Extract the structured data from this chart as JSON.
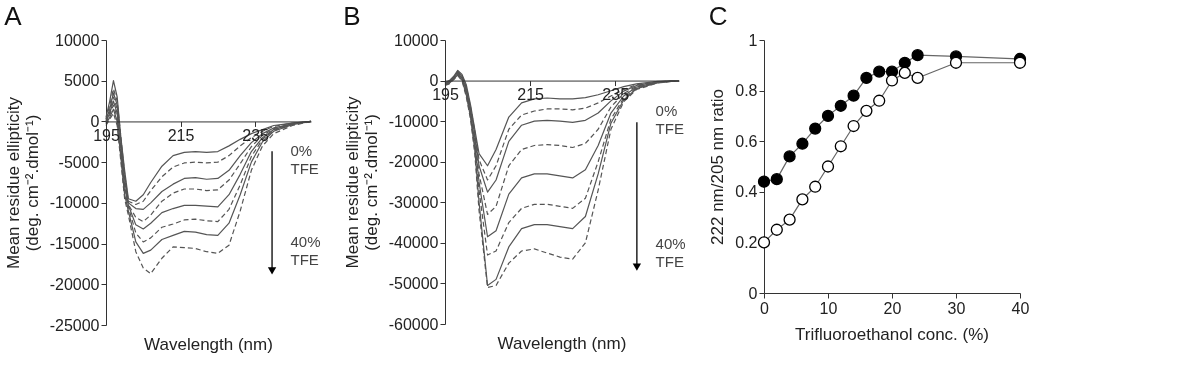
{
  "chart_data": [
    {
      "type": "line",
      "title": "A",
      "xlabel": "Wavelength (nm)",
      "ylabel": "Mean residue ellipticity\n(deg. cm⁻².dmol⁻¹)",
      "x": [
        195,
        196,
        197,
        198,
        199,
        200,
        201,
        203,
        205,
        207,
        210,
        213,
        216,
        219,
        222,
        225,
        228,
        231,
        234,
        237,
        240,
        245,
        250
      ],
      "xlim": [
        195,
        250
      ],
      "xticks": [
        195,
        215,
        235
      ],
      "ylim": [
        -25000,
        10000
      ],
      "yticks": [
        -25000,
        -20000,
        -15000,
        -10000,
        -5000,
        0,
        5000,
        10000
      ],
      "annotations": [
        "0% TFE",
        "40% TFE"
      ],
      "series": [
        {
          "color": "#555555",
          "line_style": "solid",
          "values": [
            500,
            2500,
            5000,
            3000,
            -2000,
            -6000,
            -9500,
            -9800,
            -9000,
            -7500,
            -5500,
            -4200,
            -3800,
            -3700,
            -3800,
            -3700,
            -3000,
            -2200,
            -1500,
            -1000,
            -500,
            -200,
            0
          ]
        },
        {
          "color": "#555555",
          "line_style": "dashed",
          "values": [
            300,
            2000,
            4000,
            2500,
            -2000,
            -6500,
            -9800,
            -10200,
            -9800,
            -8500,
            -6800,
            -5600,
            -5100,
            -5000,
            -5100,
            -5000,
            -4200,
            -3000,
            -2000,
            -1200,
            -600,
            -200,
            0
          ]
        },
        {
          "color": "#555555",
          "line_style": "solid",
          "values": [
            200,
            1500,
            3500,
            2000,
            -2500,
            -7000,
            -10000,
            -10700,
            -10800,
            -10000,
            -8600,
            -7700,
            -7000,
            -6900,
            -7100,
            -7000,
            -6000,
            -4200,
            -2600,
            -1500,
            -800,
            -300,
            0
          ]
        },
        {
          "color": "#555555",
          "line_style": "dashed",
          "values": [
            0,
            1200,
            3000,
            1500,
            -3000,
            -7500,
            -10200,
            -11800,
            -12300,
            -11500,
            -9800,
            -8800,
            -8300,
            -8300,
            -8500,
            -8400,
            -7200,
            -5200,
            -3100,
            -1700,
            -900,
            -300,
            0
          ]
        },
        {
          "color": "#555555",
          "line_style": "solid",
          "values": [
            0,
            1000,
            2500,
            1000,
            -3500,
            -8000,
            -10300,
            -12700,
            -13200,
            -12500,
            -11200,
            -10700,
            -10300,
            -10300,
            -10400,
            -10500,
            -9000,
            -6500,
            -3700,
            -2000,
            -1000,
            -300,
            0
          ]
        },
        {
          "color": "#555555",
          "line_style": "dashed",
          "values": [
            -200,
            800,
            2000,
            500,
            -4000,
            -8500,
            -10500,
            -13700,
            -14800,
            -14300,
            -13000,
            -12600,
            -12100,
            -12000,
            -12200,
            -12300,
            -10800,
            -7800,
            -4300,
            -2200,
            -1100,
            -400,
            0
          ]
        },
        {
          "color": "#555555",
          "line_style": "solid",
          "values": [
            -300,
            500,
            1500,
            0,
            -4500,
            -9000,
            -11000,
            -14800,
            -16200,
            -15800,
            -14500,
            -14000,
            -13500,
            -13600,
            -13900,
            -14000,
            -12500,
            -9000,
            -5000,
            -2500,
            -1200,
            -400,
            0
          ]
        },
        {
          "color": "#555555",
          "line_style": "dashed",
          "values": [
            -500,
            300,
            1000,
            -500,
            -5000,
            -9500,
            -11500,
            -16000,
            -18000,
            -18700,
            -16800,
            -15400,
            -15500,
            -15600,
            -16000,
            -16200,
            -15200,
            -11000,
            -6000,
            -3000,
            -1500,
            -500,
            0
          ]
        }
      ]
    },
    {
      "type": "line",
      "title": "B",
      "xlabel": "Wavelength (nm)",
      "ylabel": "Mean residue ellipticity\n(deg. cm⁻².dmol⁻¹)",
      "x": [
        195,
        196,
        197,
        198,
        199,
        200,
        201,
        202,
        203,
        205,
        207,
        210,
        213,
        216,
        219,
        222,
        225,
        228,
        231,
        234,
        237,
        240,
        245,
        250
      ],
      "xlim": [
        195,
        250
      ],
      "xticks": [
        195,
        215,
        235
      ],
      "ylim": [
        -60000,
        10000
      ],
      "yticks": [
        -60000,
        -50000,
        -40000,
        -30000,
        -20000,
        -10000,
        0,
        10000
      ],
      "annotations": [
        "0% TFE",
        "40% TFE"
      ],
      "series": [
        {
          "color": "#555555",
          "line_style": "solid",
          "values": [
            -500,
            0,
            1000,
            2500,
            1500,
            -1000,
            -6000,
            -12000,
            -18000,
            -21000,
            -17000,
            -9000,
            -5500,
            -4500,
            -4300,
            -4500,
            -4500,
            -4200,
            -3500,
            -2500,
            -1500,
            -800,
            -200,
            0
          ]
        },
        {
          "color": "#555555",
          "line_style": "dashed",
          "values": [
            -600,
            -200,
            800,
            2300,
            1200,
            -1500,
            -6500,
            -12500,
            -19500,
            -24500,
            -21000,
            -12000,
            -8500,
            -7500,
            -7000,
            -7000,
            -7200,
            -6800,
            -5500,
            -3800,
            -2200,
            -1000,
            -300,
            0
          ]
        },
        {
          "color": "#555555",
          "line_style": "solid",
          "values": [
            -700,
            -300,
            700,
            2200,
            1000,
            -1800,
            -7000,
            -13000,
            -21000,
            -27500,
            -24500,
            -15000,
            -11000,
            -10000,
            -9800,
            -10000,
            -10300,
            -9800,
            -8000,
            -5000,
            -2600,
            -1200,
            -300,
            0
          ]
        },
        {
          "color": "#555555",
          "line_style": "dashed",
          "values": [
            -800,
            -400,
            600,
            2000,
            800,
            -2000,
            -7500,
            -14000,
            -23000,
            -33000,
            -31000,
            -21000,
            -17000,
            -16000,
            -15800,
            -16000,
            -16500,
            -15500,
            -12000,
            -6500,
            -3200,
            -1400,
            -400,
            0
          ]
        },
        {
          "color": "#555555",
          "line_style": "solid",
          "values": [
            -900,
            -500,
            500,
            1800,
            600,
            -2500,
            -8000,
            -15000,
            -25000,
            -38500,
            -37000,
            -28000,
            -24000,
            -23000,
            -23000,
            -23500,
            -24000,
            -22000,
            -16000,
            -8000,
            -3800,
            -1600,
            -400,
            0
          ]
        },
        {
          "color": "#555555",
          "line_style": "dashed",
          "values": [
            -1000,
            -600,
            400,
            1600,
            400,
            -3000,
            -8500,
            -16000,
            -27000,
            -43000,
            -42000,
            -35000,
            -31500,
            -30500,
            -30500,
            -31000,
            -31500,
            -29000,
            -20000,
            -9500,
            -4300,
            -1800,
            -500,
            0
          ]
        },
        {
          "color": "#555555",
          "line_style": "solid",
          "values": [
            -1100,
            -700,
            300,
            1400,
            200,
            -3500,
            -9000,
            -17000,
            -30000,
            -50500,
            -49000,
            -41000,
            -36500,
            -35500,
            -35500,
            -36000,
            -36500,
            -33500,
            -23000,
            -10500,
            -4800,
            -2000,
            -500,
            0
          ]
        },
        {
          "color": "#555555",
          "line_style": "dashed",
          "values": [
            -1200,
            -800,
            200,
            1200,
            0,
            -4000,
            -9500,
            -18000,
            -32000,
            -51000,
            -50500,
            -45000,
            -42000,
            -41500,
            -42500,
            -43500,
            -44000,
            -40000,
            -27000,
            -12000,
            -5200,
            -2200,
            -600,
            0
          ]
        }
      ]
    },
    {
      "type": "line",
      "title": "C",
      "xlabel": "Trifluoroethanol conc. (%)",
      "ylabel": "222 nm/205 nm ratio",
      "x": [
        0,
        2,
        4,
        6,
        8,
        10,
        12,
        14,
        16,
        18,
        20,
        22,
        24,
        30,
        40
      ],
      "xlim": [
        0,
        40
      ],
      "xticks": [
        0,
        10,
        20,
        30,
        40
      ],
      "ylim": [
        0,
        1
      ],
      "yticks": [
        0,
        0.2,
        0.4,
        0.6,
        0.8,
        1
      ],
      "marker": "circle",
      "series": [
        {
          "color": "#000000",
          "values": [
            0.44,
            0.45,
            0.54,
            0.59,
            0.65,
            0.7,
            0.74,
            0.78,
            0.85,
            0.875,
            0.875,
            0.91,
            0.94,
            0.935,
            0.925
          ]
        },
        {
          "color": "#ffffff",
          "values": [
            0.2,
            0.25,
            0.29,
            0.37,
            0.42,
            0.5,
            0.58,
            0.66,
            0.72,
            0.76,
            0.84,
            0.87,
            0.85,
            0.91,
            0.91
          ]
        }
      ]
    }
  ]
}
